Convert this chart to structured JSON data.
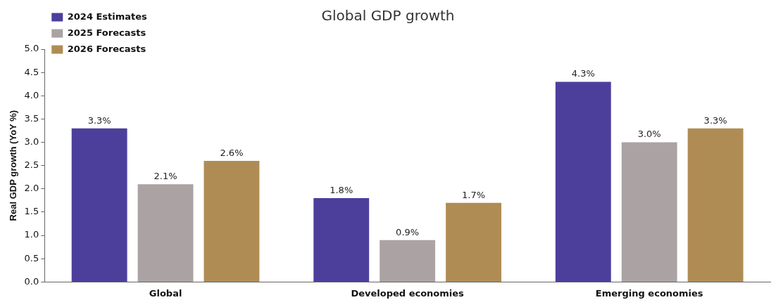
{
  "chart_data": {
    "type": "bar",
    "title": "Global GDP growth",
    "ylabel": "Real GDP growth (YoY %)",
    "categories": [
      "Global",
      "Developed economies",
      "Emerging economies"
    ],
    "series": [
      {
        "name": "2024 Estimates",
        "color": "#4c3f9c",
        "values": [
          3.3,
          1.8,
          4.3
        ],
        "value_labels": [
          "3.3%",
          "1.8%",
          "4.3%"
        ]
      },
      {
        "name": "2025 Forecasts",
        "color": "#aba3a3",
        "values": [
          2.1,
          0.9,
          3.0
        ],
        "value_labels": [
          "2.1%",
          "0.9%",
          "3.0%"
        ]
      },
      {
        "name": "2026 Forecasts",
        "color": "#b08c55",
        "values": [
          2.6,
          1.7,
          3.3
        ],
        "value_labels": [
          "2.6%",
          "1.7%",
          "3.3%"
        ]
      }
    ],
    "ylim": [
      0,
      5
    ],
    "yticks": [
      {
        "value": 0,
        "label": "0.0"
      },
      {
        "value": 0.5,
        "label": "0.5"
      },
      {
        "value": 1,
        "label": "1.0"
      },
      {
        "value": 1.5,
        "label": "1.5"
      },
      {
        "value": 2,
        "label": "2.0"
      },
      {
        "value": 2.5,
        "label": "2.5"
      },
      {
        "value": 3,
        "label": "3.0"
      },
      {
        "value": 3.5,
        "label": "3.5"
      },
      {
        "value": 4,
        "label": "4.0"
      },
      {
        "value": 4.5,
        "label": "4.5"
      },
      {
        "value": 5,
        "label": "5.0"
      }
    ],
    "grid": false,
    "legend": "top left"
  }
}
